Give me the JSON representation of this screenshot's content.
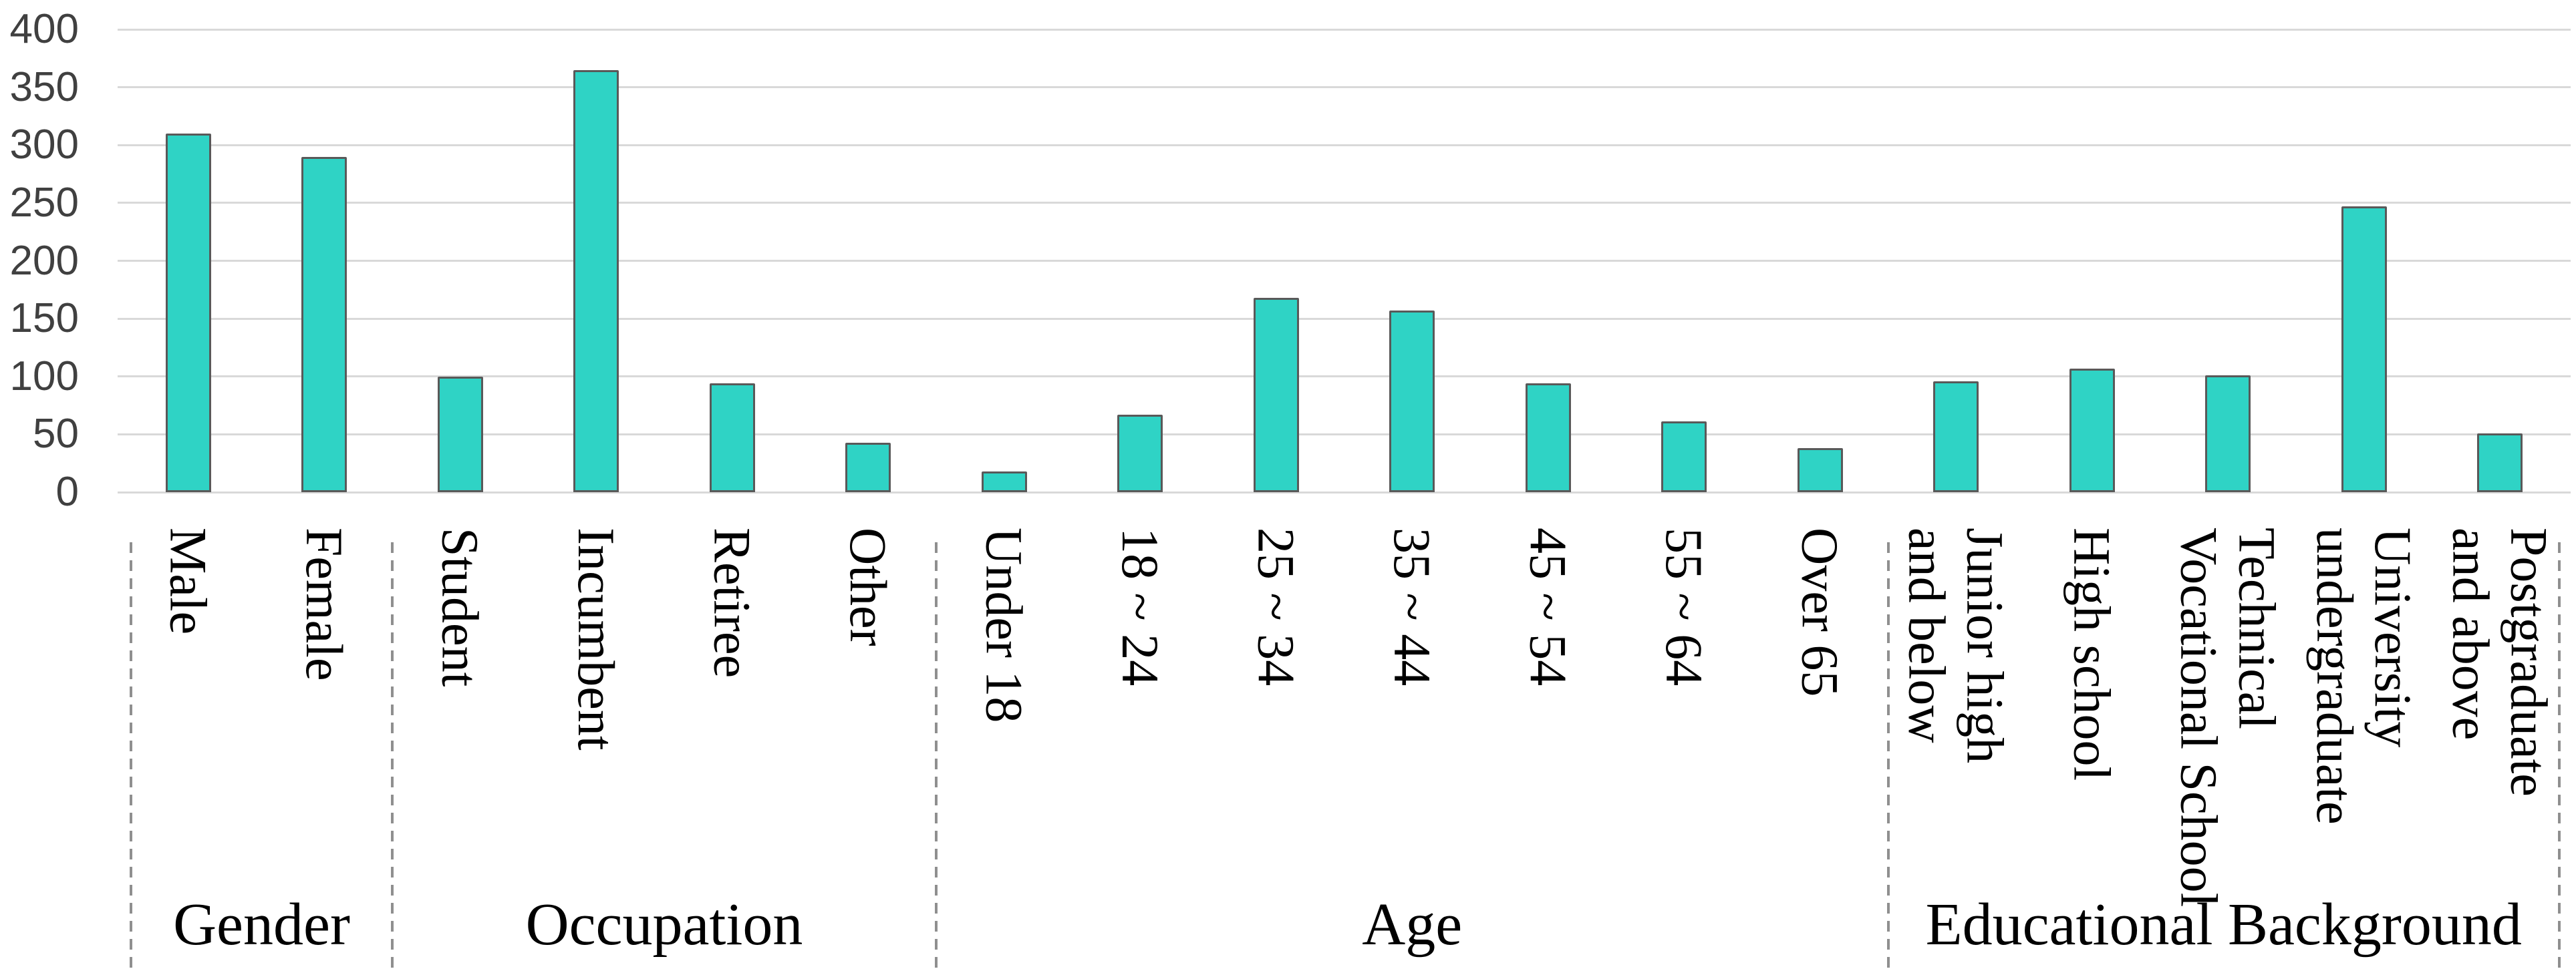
{
  "chart_data": {
    "type": "bar",
    "ylim": [
      0,
      400
    ],
    "yticks": [
      400,
      350,
      300,
      250,
      200,
      150,
      100,
      50,
      0
    ],
    "grid": "horizontal",
    "legend": "none",
    "bar_color": "#2fd3c5",
    "bar_border_color": "#595959",
    "gridline_color": "#d9d9d9",
    "separator_color": "#8f8f8f",
    "tick_text_color": "#404040",
    "groups": [
      {
        "label": "Gender",
        "categories": [
          "Male",
          "Female"
        ],
        "values": [
          310,
          290
        ]
      },
      {
        "label": "Occupation",
        "categories": [
          "Student",
          "Incumbent",
          "Retiree",
          "Other"
        ],
        "values": [
          100,
          365,
          94,
          43
        ]
      },
      {
        "label": "Age",
        "categories": [
          "Under 18",
          "18 ~ 24",
          "25 ~ 34",
          "35 ~ 44",
          "45 ~ 54",
          "55 ~ 64",
          "Over 65"
        ],
        "values": [
          18,
          67,
          168,
          157,
          94,
          61,
          38
        ]
      },
      {
        "label": "Educational Background",
        "categories": [
          "Junior high\nand below",
          "High school",
          "Technical\nVocational School",
          "University\nundergraduate",
          "Postgraduate\nand above"
        ],
        "values": [
          96,
          107,
          101,
          247,
          51
        ]
      }
    ]
  }
}
